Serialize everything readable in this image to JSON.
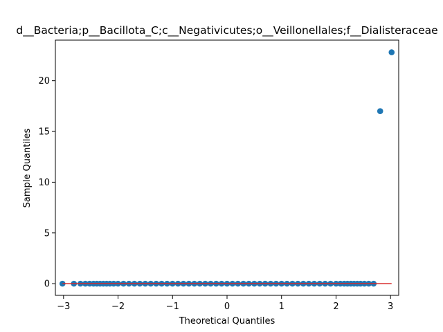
{
  "chart_data": {
    "type": "scatter",
    "title": "d__Bacteria;p__Bacillota_C;c__Negativicutes;o__Veillonellales;f__Dialisteraceae",
    "xlabel": "Theoretical Quantiles",
    "ylabel": "Sample Quantiles",
    "xlim": [
      -3.15,
      3.15
    ],
    "ylim": [
      -1.15,
      24.0
    ],
    "xticks": [
      -3,
      -2,
      -1,
      0,
      1,
      2,
      3
    ],
    "yticks": [
      0,
      5,
      10,
      15,
      20
    ],
    "xtick_labels": [
      "−3",
      "−2",
      "−1",
      "0",
      "1",
      "2",
      "3"
    ],
    "ytick_labels": [
      "0",
      "5",
      "10",
      "15",
      "20"
    ],
    "series": [
      {
        "kind": "points",
        "color": "#1f77b4",
        "x": [
          -3.02,
          -2.81,
          -2.69,
          -2.6,
          -2.52,
          -2.45,
          -2.39,
          -2.33,
          -2.27,
          -2.21,
          -2.15,
          -2.08,
          -2.0,
          -1.9,
          -1.8,
          -1.7,
          -1.6,
          -1.5,
          -1.4,
          -1.3,
          -1.2,
          -1.1,
          -1.0,
          -0.9,
          -0.8,
          -0.7,
          -0.6,
          -0.5,
          -0.4,
          -0.3,
          -0.2,
          -0.1,
          0.0,
          0.1,
          0.2,
          0.3,
          0.4,
          0.5,
          0.6,
          0.7,
          0.8,
          0.9,
          1.0,
          1.1,
          1.2,
          1.3,
          1.4,
          1.5,
          1.6,
          1.7,
          1.8,
          1.9,
          2.0,
          2.08,
          2.15,
          2.21,
          2.27,
          2.33,
          2.39,
          2.45,
          2.52,
          2.6,
          2.69,
          2.81,
          3.02
        ],
        "y": [
          0,
          0,
          0,
          0,
          0,
          0,
          0,
          0,
          0,
          0,
          0,
          0,
          0,
          0,
          0,
          0,
          0,
          0,
          0,
          0,
          0,
          0,
          0,
          0,
          0,
          0,
          0,
          0,
          0,
          0,
          0,
          0,
          0,
          0,
          0,
          0,
          0,
          0,
          0,
          0,
          0,
          0,
          0,
          0,
          0,
          0,
          0,
          0,
          0,
          0,
          0,
          0,
          0,
          0,
          0,
          0,
          0,
          0,
          0,
          0,
          0,
          0,
          0,
          17.0,
          22.8
        ]
      },
      {
        "kind": "line",
        "color": "#d62728",
        "x": [
          -3.02,
          3.02
        ],
        "y": [
          0,
          0
        ]
      }
    ],
    "grid": false,
    "legend": "none"
  }
}
